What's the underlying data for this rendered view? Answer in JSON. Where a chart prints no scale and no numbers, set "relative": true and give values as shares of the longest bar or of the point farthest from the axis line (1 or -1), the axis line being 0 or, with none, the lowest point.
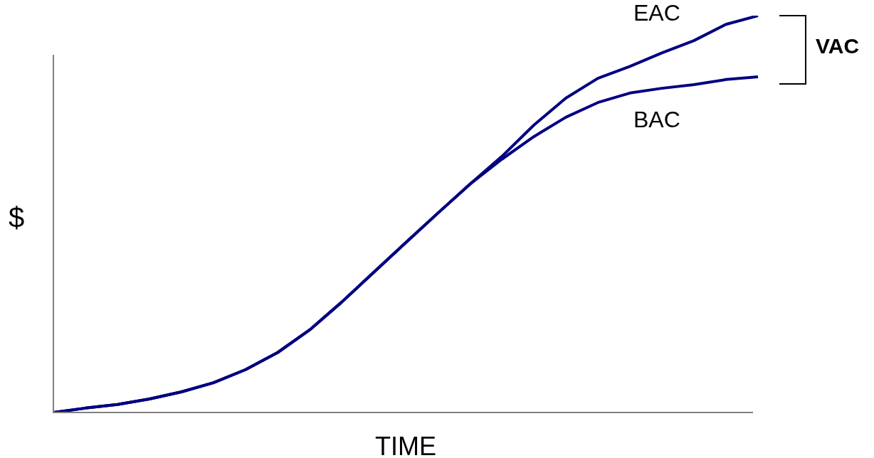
{
  "chart_data": {
    "type": "line",
    "relative": true,
    "xlabel": "TIME",
    "ylabel": "$",
    "annotations": [
      "VAC"
    ],
    "legend": false,
    "marker": "none",
    "line_style": "solid",
    "categories": [
      null,
      null,
      null,
      null,
      null,
      null,
      null,
      null,
      null,
      null,
      null,
      null,
      null,
      null,
      null,
      null,
      null,
      null,
      null,
      null,
      null,
      null,
      null
    ],
    "series": [
      {
        "name": "EAC",
        "color": "#000080",
        "values": [
          0,
          0.011,
          0.02,
          0.034,
          0.052,
          0.075,
          0.108,
          0.151,
          0.208,
          0.278,
          0.353,
          0.428,
          0.502,
          0.575,
          0.645,
          0.724,
          0.792,
          0.842,
          0.872,
          0.906,
          0.937,
          0.978,
          1
        ]
      },
      {
        "name": "BAC",
        "color": "#000080",
        "values": [
          0,
          0.011,
          0.02,
          0.034,
          0.052,
          0.075,
          0.108,
          0.151,
          0.208,
          0.278,
          0.353,
          0.428,
          0.502,
          0.575,
          0.638,
          0.695,
          0.744,
          0.781,
          0.805,
          0.817,
          0.826,
          0.839,
          0.846
        ]
      }
    ]
  }
}
